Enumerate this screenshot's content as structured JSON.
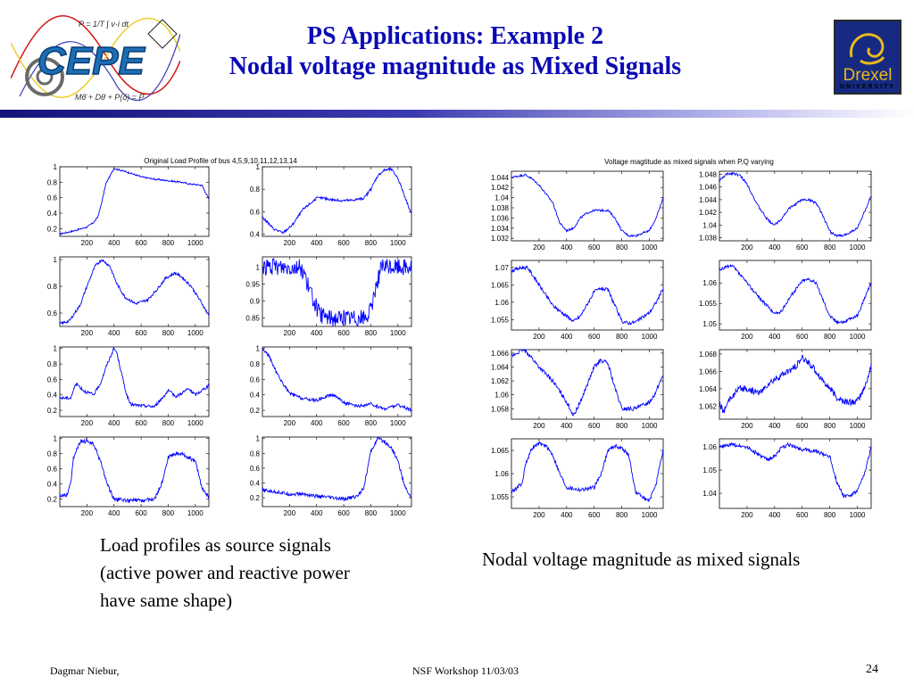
{
  "slide": {
    "title_line1": "PS Applications: Example 2",
    "title_line2": "Nodal voltage magnitude as Mixed Signals",
    "logo_left_text": "CEPE",
    "logo_right_text": "Drexel",
    "logo_right_sub": "UNIVERSITY",
    "caption_left": [
      "Load profiles as source signals",
      "(active power and reactive power",
      "have same shape)"
    ],
    "caption_right": "Nodal voltage magnitude as mixed signals",
    "footer_left": "Dagmar Niebur,",
    "footer_center": "NSF Workshop 11/03/03",
    "footer_right": "24"
  },
  "chart_data": [
    {
      "type": "line",
      "title": "Original Load Profile of bus 4,5,9,10,11,12,13,14",
      "color": "#0000ff",
      "x_ticks": [
        "200",
        "400",
        "600",
        "800",
        "1000"
      ],
      "xlim": [
        0,
        1100
      ],
      "subplots": [
        {
          "y_ticks": [
            "1",
            "0.8",
            "0.6",
            "0.4",
            "0.2"
          ],
          "ylim": [
            0.1,
            1.0
          ],
          "x": [
            0,
            100,
            200,
            250,
            280,
            300,
            340,
            400,
            500,
            600,
            700,
            800,
            900,
            950,
            1050,
            1100
          ],
          "y": [
            0.13,
            0.17,
            0.22,
            0.28,
            0.35,
            0.47,
            0.78,
            0.98,
            0.93,
            0.87,
            0.84,
            0.82,
            0.8,
            0.78,
            0.76,
            0.58
          ],
          "noise": 0.01
        },
        {
          "y_ticks": [
            "1",
            "0.8",
            "0.6",
            "0.4"
          ],
          "ylim": [
            0.38,
            1.0
          ],
          "x": [
            0,
            80,
            150,
            220,
            300,
            400,
            450,
            550,
            650,
            750,
            800,
            850,
            900,
            950,
            1000,
            1100
          ],
          "y": [
            0.55,
            0.45,
            0.41,
            0.48,
            0.62,
            0.72,
            0.72,
            0.7,
            0.7,
            0.72,
            0.8,
            0.92,
            0.97,
            0.98,
            0.9,
            0.58
          ],
          "noise": 0.012
        },
        {
          "y_ticks": [
            "1",
            "0.8",
            "0.6"
          ],
          "ylim": [
            0.5,
            1.02
          ],
          "x": [
            0,
            70,
            150,
            200,
            260,
            310,
            370,
            420,
            480,
            560,
            650,
            720,
            780,
            850,
            900,
            970,
            1050,
            1100
          ],
          "y": [
            0.52,
            0.54,
            0.66,
            0.8,
            0.95,
            1.0,
            0.95,
            0.82,
            0.72,
            0.67,
            0.7,
            0.78,
            0.86,
            0.9,
            0.87,
            0.8,
            0.67,
            0.58
          ],
          "noise": 0.01
        },
        {
          "y_ticks": [
            "1",
            "0.95",
            "0.9",
            "0.85"
          ],
          "ylim": [
            0.825,
            1.03
          ],
          "x": [
            0,
            280,
            310,
            340,
            380,
            420,
            500,
            600,
            700,
            760,
            800,
            840,
            880,
            1000,
            1100
          ],
          "y": [
            1.0,
            1.0,
            0.98,
            0.94,
            0.9,
            0.86,
            0.85,
            0.85,
            0.85,
            0.85,
            0.87,
            0.95,
            1.0,
            1.0,
            1.0
          ],
          "noise": 0.025
        },
        {
          "y_ticks": [
            "1",
            "0.8",
            "0.6",
            "0.4",
            "0.2"
          ],
          "ylim": [
            0.12,
            1.02
          ],
          "x": [
            0,
            80,
            120,
            180,
            250,
            300,
            350,
            400,
            420,
            450,
            490,
            520,
            550,
            600,
            700,
            800,
            860,
            950,
            1000,
            1100
          ],
          "y": [
            0.36,
            0.36,
            0.55,
            0.45,
            0.4,
            0.55,
            0.8,
            1.0,
            0.95,
            0.72,
            0.42,
            0.28,
            0.27,
            0.26,
            0.25,
            0.45,
            0.38,
            0.48,
            0.4,
            0.52
          ],
          "noise": 0.02
        },
        {
          "y_ticks": [
            "1",
            "0.8",
            "0.6",
            "0.4",
            "0.2"
          ],
          "ylim": [
            0.12,
            1.02
          ],
          "x": [
            0,
            50,
            100,
            150,
            200,
            300,
            400,
            500,
            550,
            600,
            700,
            800,
            900,
            1000,
            1100
          ],
          "y": [
            1.0,
            0.9,
            0.7,
            0.55,
            0.42,
            0.35,
            0.33,
            0.4,
            0.38,
            0.3,
            0.25,
            0.28,
            0.22,
            0.27,
            0.2
          ],
          "noise": 0.02
        },
        {
          "y_ticks": [
            "1",
            "0.8",
            "0.6",
            "0.4",
            "0.2"
          ],
          "ylim": [
            0.1,
            1.02
          ],
          "x": [
            0,
            50,
            80,
            100,
            150,
            200,
            250,
            300,
            350,
            400,
            500,
            600,
            700,
            750,
            800,
            850,
            900,
            1000,
            1050,
            1100
          ],
          "y": [
            0.25,
            0.25,
            0.4,
            0.75,
            0.95,
            0.97,
            0.92,
            0.7,
            0.4,
            0.2,
            0.18,
            0.18,
            0.2,
            0.4,
            0.75,
            0.8,
            0.8,
            0.7,
            0.35,
            0.22
          ],
          "noise": 0.025
        },
        {
          "y_ticks": [
            "1",
            "0.8",
            "0.6",
            "0.4",
            "0.2"
          ],
          "ylim": [
            0.08,
            1.02
          ],
          "x": [
            0,
            100,
            200,
            300,
            400,
            500,
            600,
            700,
            750,
            800,
            850,
            900,
            950,
            1000,
            1050,
            1100
          ],
          "y": [
            0.3,
            0.28,
            0.25,
            0.25,
            0.22,
            0.2,
            0.18,
            0.22,
            0.35,
            0.82,
            1.0,
            0.96,
            0.88,
            0.7,
            0.35,
            0.2
          ],
          "noise": 0.025
        }
      ]
    },
    {
      "type": "line",
      "title": "Voltage magtitude as mixed signals when P,Q varying",
      "color": "#0000ff",
      "x_ticks": [
        "200",
        "400",
        "600",
        "800",
        "1000"
      ],
      "xlim": [
        0,
        1100
      ],
      "subplots": [
        {
          "y_ticks": [
            "1.044",
            "1.042",
            "1.04",
            "1.038",
            "1.036",
            "1.034",
            "1.032"
          ],
          "ylim": [
            1.0315,
            1.0452
          ],
          "x": [
            0,
            100,
            150,
            200,
            300,
            350,
            400,
            450,
            500,
            550,
            600,
            700,
            750,
            800,
            850,
            900,
            1000,
            1050,
            1100
          ],
          "y": [
            1.044,
            1.0445,
            1.0437,
            1.0425,
            1.039,
            1.035,
            1.0335,
            1.034,
            1.036,
            1.037,
            1.0375,
            1.0375,
            1.036,
            1.0335,
            1.0325,
            1.0325,
            1.0335,
            1.036,
            1.04
          ],
          "noise": 0.0002
        },
        {
          "y_ticks": [
            "1.048",
            "1.046",
            "1.044",
            "1.042",
            "1.04",
            "1.038"
          ],
          "ylim": [
            1.0375,
            1.0485
          ],
          "x": [
            0,
            50,
            100,
            150,
            200,
            280,
            350,
            400,
            450,
            500,
            600,
            650,
            700,
            750,
            800,
            850,
            900,
            1000,
            1050,
            1100
          ],
          "y": [
            1.047,
            1.048,
            1.0482,
            1.0478,
            1.0465,
            1.043,
            1.0408,
            1.04,
            1.041,
            1.0425,
            1.044,
            1.044,
            1.0435,
            1.0415,
            1.039,
            1.0383,
            1.0383,
            1.0395,
            1.042,
            1.0445
          ],
          "noise": 0.0002
        },
        {
          "y_ticks": [
            "1.07",
            "1.065",
            "1.06",
            "1.055"
          ],
          "ylim": [
            1.052,
            1.072
          ],
          "x": [
            0,
            80,
            120,
            200,
            300,
            400,
            450,
            500,
            600,
            650,
            700,
            750,
            800,
            850,
            900,
            1000,
            1050,
            1100
          ],
          "y": [
            1.069,
            1.07,
            1.0698,
            1.065,
            1.059,
            1.056,
            1.0545,
            1.056,
            1.063,
            1.064,
            1.0635,
            1.059,
            1.0545,
            1.054,
            1.0543,
            1.057,
            1.06,
            1.064
          ],
          "noise": 0.0005
        },
        {
          "y_ticks": [
            "1.06",
            "1.055",
            "1.05"
          ],
          "ylim": [
            1.0485,
            1.0655
          ],
          "x": [
            0,
            50,
            100,
            150,
            200,
            300,
            400,
            450,
            500,
            600,
            650,
            700,
            750,
            800,
            850,
            900,
            1000,
            1050,
            1100
          ],
          "y": [
            1.063,
            1.064,
            1.064,
            1.062,
            1.06,
            1.056,
            1.0525,
            1.053,
            1.056,
            1.0605,
            1.061,
            1.06,
            1.056,
            1.052,
            1.0505,
            1.0505,
            1.052,
            1.056,
            1.06
          ],
          "noise": 0.0004
        },
        {
          "y_ticks": [
            "1.066",
            "1.064",
            "1.062",
            "1.06",
            "1.058"
          ],
          "ylim": [
            1.0565,
            1.0665
          ],
          "x": [
            0,
            80,
            120,
            200,
            300,
            400,
            450,
            500,
            600,
            650,
            700,
            750,
            800,
            900,
            1000,
            1050,
            1100
          ],
          "y": [
            1.0655,
            1.0665,
            1.066,
            1.064,
            1.062,
            1.059,
            1.057,
            1.059,
            1.064,
            1.065,
            1.0645,
            1.061,
            1.058,
            1.058,
            1.059,
            1.0605,
            1.063
          ],
          "noise": 0.0003
        },
        {
          "y_ticks": [
            "1.068",
            "1.066",
            "1.064",
            "1.062"
          ],
          "ylim": [
            1.0605,
            1.0685
          ],
          "x": [
            0,
            30,
            80,
            150,
            200,
            300,
            350,
            450,
            550,
            600,
            650,
            700,
            750,
            800,
            850,
            900,
            1000,
            1050,
            1100
          ],
          "y": [
            1.0625,
            1.0612,
            1.063,
            1.064,
            1.064,
            1.0635,
            1.0645,
            1.0655,
            1.0665,
            1.0675,
            1.067,
            1.066,
            1.065,
            1.064,
            1.063,
            1.0625,
            1.0625,
            1.064,
            1.0665
          ],
          "noise": 0.0004
        },
        {
          "y_ticks": [
            "1.065",
            "1.06",
            "1.055"
          ],
          "ylim": [
            1.0525,
            1.0675
          ],
          "x": [
            0,
            80,
            100,
            150,
            200,
            250,
            300,
            350,
            400,
            500,
            600,
            650,
            700,
            750,
            800,
            850,
            900,
            1000,
            1050,
            1100
          ],
          "y": [
            1.056,
            1.058,
            1.062,
            1.0655,
            1.0665,
            1.066,
            1.064,
            1.06,
            1.057,
            1.0565,
            1.057,
            1.06,
            1.065,
            1.066,
            1.0655,
            1.064,
            1.056,
            1.054,
            1.058,
            1.065
          ],
          "noise": 0.0004
        },
        {
          "y_ticks": [
            "1.06",
            "1.05",
            "1.04"
          ],
          "ylim": [
            1.0335,
            1.0635
          ],
          "x": [
            0,
            100,
            200,
            300,
            350,
            400,
            450,
            500,
            600,
            700,
            800,
            850,
            900,
            950,
            1000,
            1050,
            1100
          ],
          "y": [
            1.06,
            1.061,
            1.06,
            1.056,
            1.0545,
            1.056,
            1.0595,
            1.061,
            1.059,
            1.058,
            1.056,
            1.045,
            1.039,
            1.039,
            1.041,
            1.048,
            1.06
          ],
          "noise": 0.0008
        }
      ]
    }
  ]
}
